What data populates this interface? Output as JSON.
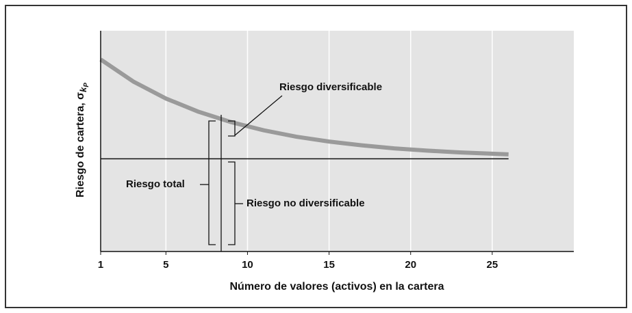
{
  "chart_data": {
    "type": "line",
    "x_label": "Número de valores (activos) en la cartera",
    "y_label": "Riesgo de cartera, σ",
    "y_label_sub": "k",
    "y_label_subsub": "P",
    "x": [
      1,
      3,
      5,
      7,
      9,
      11,
      13,
      15,
      17,
      19,
      21,
      23,
      26
    ],
    "series": [
      {
        "color": "#9a9a9a",
        "values": [
          87,
          77,
          69.3,
          63.3,
          58.6,
          54.9,
          52,
          49.8,
          48.1,
          46.7,
          45.7,
          44.9,
          44
        ]
      },
      {
        "color": "#111111",
        "values": [
          42,
          42,
          42,
          42,
          42,
          42,
          42,
          42,
          42,
          42,
          42,
          42,
          42
        ]
      }
    ],
    "xlim": [
      1,
      30
    ],
    "xticks": [
      1,
      5,
      10,
      15,
      20,
      25
    ],
    "ylim": [
      0,
      100
    ],
    "grid": true,
    "annotations": [
      "Riesgo diversificable",
      "Riesgo total",
      "Riesgo no diversificable"
    ]
  }
}
